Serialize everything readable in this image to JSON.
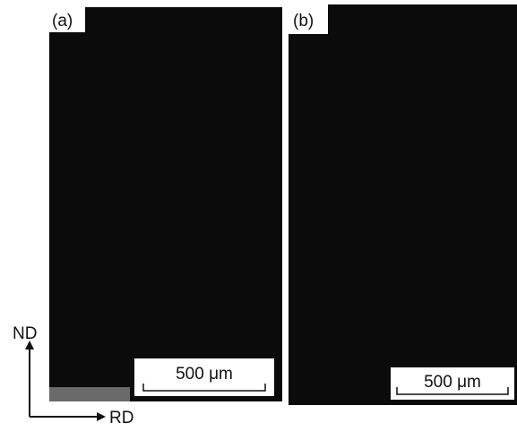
{
  "panels": [
    {
      "label": "(a)",
      "scale_bar": "500 μm"
    },
    {
      "label": "(b)",
      "scale_bar": "500 μm"
    }
  ],
  "axes": {
    "vertical": "ND",
    "horizontal": "RD"
  }
}
